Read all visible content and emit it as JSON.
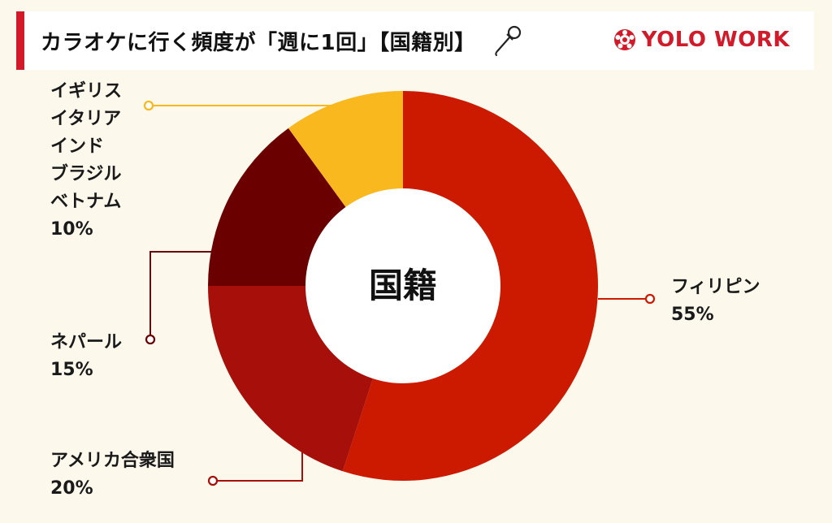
{
  "header": {
    "title": "カラオケに行く頻度が「週に1回」【国籍別】",
    "brand": "YOLO WORK",
    "accent_color": "#d11a2a",
    "icons": [
      "microphone-icon",
      "yolo-work-logo-icon"
    ]
  },
  "chart_data": {
    "type": "pie",
    "donut": true,
    "center_label": "国籍",
    "unit": "%",
    "slices": [
      {
        "name": "フィリピン",
        "value": 55,
        "value_label": "55%",
        "color": "#cc1a00",
        "label_lines": [
          "フィリピン"
        ]
      },
      {
        "name": "アメリカ合衆国",
        "value": 20,
        "value_label": "20%",
        "color": "#a60f0a",
        "label_lines": [
          "アメリカ合衆国"
        ]
      },
      {
        "name": "ネパール",
        "value": 15,
        "value_label": "15%",
        "color": "#6b0000",
        "label_lines": [
          "ネパール"
        ]
      },
      {
        "name": "イギリス・イタリア・インド・ブラジル・ベトナム",
        "value": 10,
        "value_label": "10%",
        "color": "#f8b81e",
        "label_lines": [
          "イギリス",
          "イタリア",
          "インド",
          "ブラジル",
          "ベトナム"
        ]
      }
    ]
  }
}
